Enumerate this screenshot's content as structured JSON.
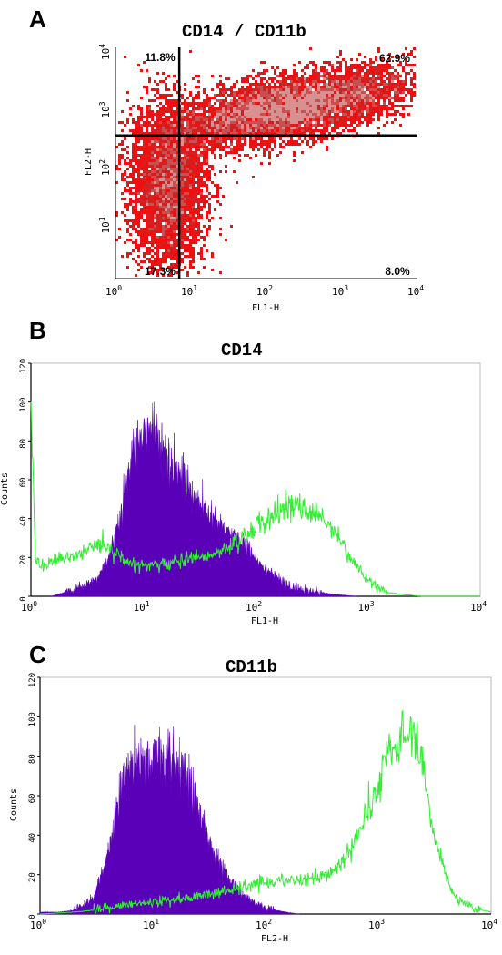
{
  "panels": [
    {
      "letter": "A",
      "title": "CD14 / CD11b"
    },
    {
      "letter": "B",
      "title": "CD14"
    },
    {
      "letter": "C",
      "title": "CD11b"
    }
  ],
  "chart_data": [
    {
      "type": "scatter",
      "panel": "A",
      "title": "CD14 / CD11b",
      "xlabel": "FL1-H",
      "ylabel": "FL2-H",
      "xscale": "log",
      "yscale": "log",
      "xlim": [
        1,
        10000
      ],
      "ylim": [
        1,
        10000
      ],
      "xticks": [
        "10^0",
        "10^1",
        "10^2",
        "10^3",
        "10^4"
      ],
      "yticks": [
        "10^1",
        "10^2",
        "10^3",
        "10^4"
      ],
      "gates": {
        "x": 7,
        "y": 300
      },
      "quadrant_labels": {
        "upper_left": "11.8%",
        "upper_right": "62.9%",
        "lower_left": "17.3%",
        "lower_right": "8.0%"
      },
      "populations": [
        {
          "name": "",
          "center": [
            200,
            900
          ],
          "spread": [
            0.9,
            0.45
          ],
          "color": "#e00000"
        },
        {
          "name": "",
          "center": [
            5,
            40
          ],
          "spread": [
            0.25,
            0.7
          ],
          "color": "#e00000"
        }
      ]
    },
    {
      "type": "area",
      "panel": "B",
      "title": "CD14",
      "xlabel": "FL1-H",
      "ylabel": "Counts",
      "xscale": "log",
      "xlim": [
        1,
        10000
      ],
      "ylim": [
        0,
        120
      ],
      "yticks": [
        0,
        20,
        40,
        60,
        80,
        100,
        120
      ],
      "xticks": [
        "10^0",
        "10^1",
        "10^2",
        "10^3",
        "10^4"
      ],
      "series": [
        {
          "name": "",
          "style": "filled",
          "color": "#5a00b8",
          "x": [
            1.5,
            2,
            3,
            4,
            5,
            6,
            7,
            8,
            10,
            12,
            15,
            20,
            25,
            30,
            40,
            50,
            70,
            100,
            150,
            200,
            300,
            500,
            800
          ],
          "y": [
            0,
            2,
            5,
            10,
            20,
            38,
            58,
            70,
            82,
            86,
            78,
            65,
            55,
            48,
            40,
            35,
            30,
            20,
            10,
            5,
            3,
            1,
            0
          ]
        },
        {
          "name": "",
          "style": "line",
          "color": "#33ee33",
          "x": [
            1,
            1.1,
            1.3,
            1.6,
            2,
            3,
            4,
            5,
            7,
            10,
            15,
            20,
            30,
            50,
            70,
            100,
            150,
            200,
            300,
            400,
            500,
            700,
            1000,
            1500,
            2000,
            3000,
            5000,
            10000
          ],
          "y": [
            100,
            18,
            15,
            18,
            20,
            22,
            27,
            26,
            18,
            16,
            16,
            18,
            20,
            22,
            28,
            36,
            42,
            47,
            44,
            40,
            35,
            20,
            8,
            2,
            1,
            0,
            0,
            0
          ]
        }
      ]
    },
    {
      "type": "area",
      "panel": "C",
      "title": "CD11b",
      "xlabel": "FL2-H",
      "ylabel": "Counts",
      "xscale": "log",
      "xlim": [
        1,
        10000
      ],
      "ylim": [
        0,
        120
      ],
      "yticks": [
        0,
        20,
        40,
        60,
        80,
        100,
        120
      ],
      "xticks": [
        "10^0",
        "10^1",
        "10^2",
        "10^3",
        "10^4"
      ],
      "series": [
        {
          "name": "",
          "style": "filled",
          "color": "#5a00b8",
          "x": [
            1,
            1.5,
            2,
            3,
            4,
            5,
            6,
            8,
            10,
            12,
            15,
            20,
            25,
            30,
            40,
            50,
            70,
            100,
            150,
            200
          ],
          "y": [
            1,
            1,
            2,
            8,
            30,
            60,
            75,
            76,
            78,
            80,
            75,
            68,
            55,
            40,
            25,
            16,
            8,
            3,
            1,
            0
          ]
        },
        {
          "name": "",
          "style": "line",
          "color": "#33ee33",
          "x": [
            1,
            2,
            3,
            5,
            10,
            20,
            30,
            50,
            70,
            100,
            150,
            200,
            300,
            400,
            500,
            700,
            1000,
            1300,
            1600,
            2000,
            2500,
            3000,
            4000,
            5000,
            7000,
            10000
          ],
          "y": [
            0,
            1,
            2,
            4,
            6,
            8,
            10,
            12,
            14,
            16,
            17,
            17,
            18,
            22,
            28,
            42,
            65,
            82,
            88,
            95,
            75,
            45,
            18,
            8,
            3,
            1
          ]
        }
      ]
    }
  ]
}
